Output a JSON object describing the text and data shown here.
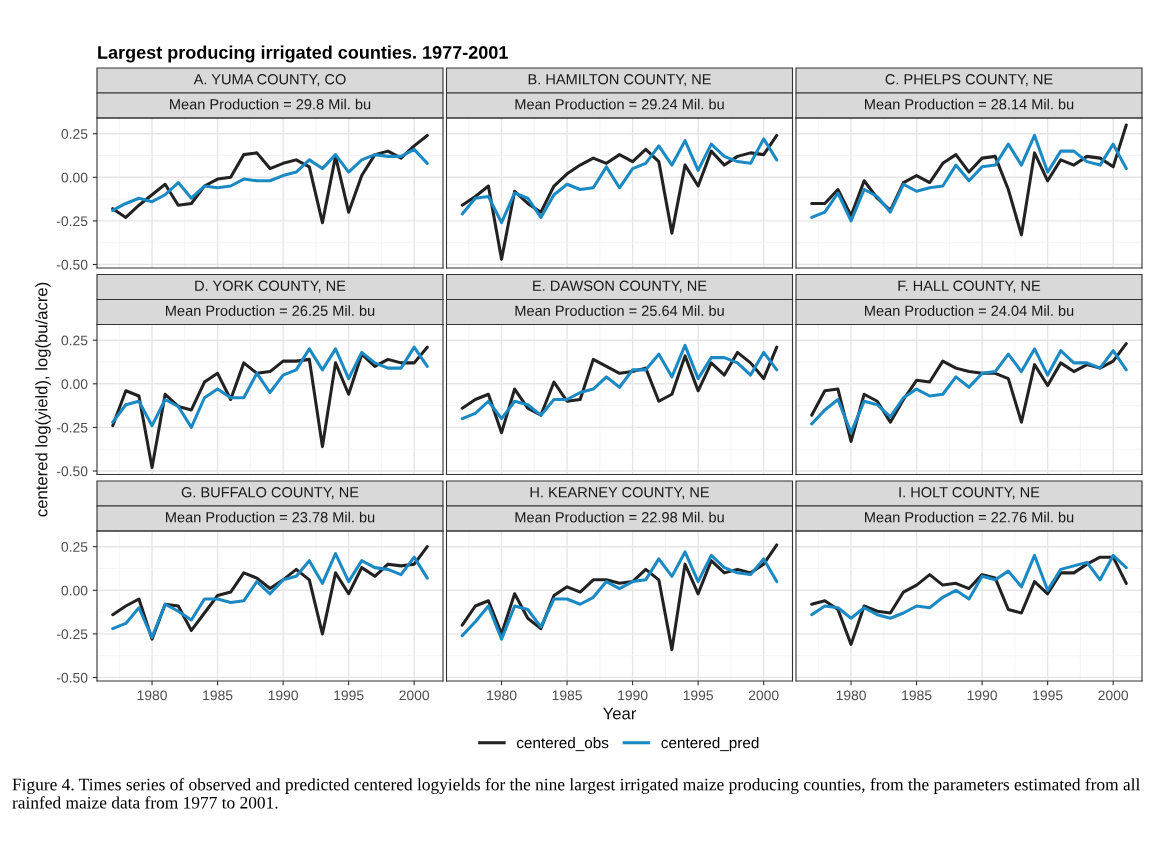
{
  "chart_data": [
    {
      "type": "line",
      "title": "A. YUMA COUNTY, CO",
      "subtitle": "Mean Production = 29.8 Mil. bu",
      "legend": "bottom",
      "annotations": [
        "Largest producing irrigated counties. 1977-2001"
      ],
      "x": [
        1977,
        1978,
        1979,
        1980,
        1981,
        1982,
        1983,
        1984,
        1985,
        1986,
        1987,
        1988,
        1989,
        1990,
        1991,
        1992,
        1993,
        1994,
        1995,
        1996,
        1997,
        1998,
        1999,
        2000,
        2001
      ],
      "xlim": [
        1975.8,
        2002.2
      ],
      "ylim": [
        -0.52,
        0.34
      ],
      "xticks": [
        {
          "value": 1980,
          "label": null
        },
        {
          "value": 1985,
          "label": null
        },
        {
          "value": 1990,
          "label": null
        },
        {
          "value": 1995,
          "label": null
        },
        {
          "value": 2000,
          "label": null
        }
      ],
      "yticks": [
        {
          "value": -0.5,
          "label": "-0.50"
        },
        {
          "value": -0.25,
          "label": "-0.25"
        },
        {
          "value": 0,
          "label": "0.00"
        },
        {
          "value": 0.25,
          "label": "0.25"
        }
      ],
      "grid": true,
      "tick_labels": "y",
      "series": [
        {
          "name": "centered_obs",
          "color": "#222222",
          "values": [
            -0.18,
            -0.23,
            -0.16,
            -0.1,
            -0.04,
            -0.16,
            -0.15,
            -0.05,
            -0.01,
            0.0,
            0.13,
            0.14,
            0.05,
            0.08,
            0.1,
            0.06,
            -0.26,
            0.12,
            -0.2,
            0.01,
            0.13,
            0.15,
            0.11,
            0.18,
            0.24
          ]
        },
        {
          "name": "centered_pred",
          "color": "#1b8ac4",
          "values": [
            -0.19,
            -0.15,
            -0.12,
            -0.14,
            -0.1,
            -0.03,
            -0.12,
            -0.05,
            -0.06,
            -0.05,
            -0.01,
            -0.02,
            -0.02,
            0.01,
            0.03,
            0.1,
            0.05,
            0.13,
            0.03,
            0.1,
            0.13,
            0.12,
            0.12,
            0.16,
            0.08
          ]
        }
      ]
    },
    {
      "type": "line",
      "title": "B. HAMILTON COUNTY, NE",
      "subtitle": "Mean Production = 29.24 Mil. bu",
      "x": [
        1977,
        1978,
        1979,
        1980,
        1981,
        1982,
        1983,
        1984,
        1985,
        1986,
        1987,
        1988,
        1989,
        1990,
        1991,
        1992,
        1993,
        1994,
        1995,
        1996,
        1997,
        1998,
        1999,
        2000,
        2001
      ],
      "xlim": [
        1975.8,
        2002.2
      ],
      "ylim": [
        -0.52,
        0.34
      ],
      "xticks": [
        {
          "value": 1980,
          "label": null
        },
        {
          "value": 1985,
          "label": null
        },
        {
          "value": 1990,
          "label": null
        },
        {
          "value": 1995,
          "label": null
        },
        {
          "value": 2000,
          "label": null
        }
      ],
      "yticks": [
        {
          "value": -0.5,
          "label": null
        },
        {
          "value": -0.25,
          "label": null
        },
        {
          "value": 0,
          "label": null
        },
        {
          "value": 0.25,
          "label": null
        }
      ],
      "grid": true,
      "tick_labels": false,
      "series": [
        {
          "color": "#222222",
          "values": [
            -0.16,
            -0.11,
            -0.05,
            -0.47,
            -0.08,
            -0.15,
            -0.2,
            -0.05,
            0.02,
            0.07,
            0.11,
            0.08,
            0.13,
            0.09,
            0.16,
            0.09,
            -0.32,
            0.07,
            -0.05,
            0.15,
            0.07,
            0.12,
            0.14,
            0.13,
            0.24
          ]
        },
        {
          "color": "#1b8ac4",
          "values": [
            -0.21,
            -0.12,
            -0.11,
            -0.26,
            -0.09,
            -0.12,
            -0.23,
            -0.1,
            -0.04,
            -0.07,
            -0.06,
            0.06,
            -0.06,
            0.05,
            0.08,
            0.18,
            0.07,
            0.21,
            0.04,
            0.19,
            0.12,
            0.09,
            0.08,
            0.22,
            0.1
          ]
        }
      ]
    },
    {
      "type": "line",
      "title": "C. PHELPS COUNTY, NE",
      "subtitle": "Mean Production = 28.14 Mil. bu",
      "x": [
        1977,
        1978,
        1979,
        1980,
        1981,
        1982,
        1983,
        1984,
        1985,
        1986,
        1987,
        1988,
        1989,
        1990,
        1991,
        1992,
        1993,
        1994,
        1995,
        1996,
        1997,
        1998,
        1999,
        2000,
        2001
      ],
      "xlim": [
        1975.8,
        2002.2
      ],
      "ylim": [
        -0.52,
        0.34
      ],
      "xticks": [
        {
          "value": 1980,
          "label": null
        },
        {
          "value": 1985,
          "label": null
        },
        {
          "value": 1990,
          "label": null
        },
        {
          "value": 1995,
          "label": null
        },
        {
          "value": 2000,
          "label": null
        }
      ],
      "yticks": [
        {
          "value": -0.5,
          "label": null
        },
        {
          "value": -0.25,
          "label": null
        },
        {
          "value": 0,
          "label": null
        },
        {
          "value": 0.25,
          "label": null
        }
      ],
      "grid": true,
      "tick_labels": false,
      "series": [
        {
          "color": "#222222",
          "values": [
            -0.15,
            -0.15,
            -0.07,
            -0.22,
            -0.02,
            -0.12,
            -0.19,
            -0.03,
            0.01,
            -0.03,
            0.08,
            0.13,
            0.03,
            0.11,
            0.12,
            -0.07,
            -0.33,
            0.14,
            -0.02,
            0.1,
            0.07,
            0.12,
            0.11,
            0.06,
            0.3
          ]
        },
        {
          "color": "#1b8ac4",
          "values": [
            -0.23,
            -0.2,
            -0.09,
            -0.25,
            -0.07,
            -0.11,
            -0.2,
            -0.04,
            -0.08,
            -0.06,
            -0.05,
            0.07,
            -0.02,
            0.06,
            0.07,
            0.19,
            0.07,
            0.24,
            0.03,
            0.15,
            0.15,
            0.09,
            0.07,
            0.19,
            0.05
          ]
        }
      ]
    },
    {
      "type": "line",
      "title": "D. YORK COUNTY, NE",
      "subtitle": "Mean Production = 26.25 Mil. bu",
      "ylabel": "centered log(yield), log(bu/acre)",
      "x": [
        1977,
        1978,
        1979,
        1980,
        1981,
        1982,
        1983,
        1984,
        1985,
        1986,
        1987,
        1988,
        1989,
        1990,
        1991,
        1992,
        1993,
        1994,
        1995,
        1996,
        1997,
        1998,
        1999,
        2000,
        2001
      ],
      "xlim": [
        1975.8,
        2002.2
      ],
      "ylim": [
        -0.52,
        0.34
      ],
      "xticks": [
        {
          "value": 1980,
          "label": null
        },
        {
          "value": 1985,
          "label": null
        },
        {
          "value": 1990,
          "label": null
        },
        {
          "value": 1995,
          "label": null
        },
        {
          "value": 2000,
          "label": null
        }
      ],
      "yticks": [
        {
          "value": -0.5,
          "label": "-0.50"
        },
        {
          "value": -0.25,
          "label": "-0.25"
        },
        {
          "value": 0,
          "label": "0.00"
        },
        {
          "value": 0.25,
          "label": "0.25"
        }
      ],
      "grid": true,
      "tick_labels": "y",
      "series": [
        {
          "color": "#222222",
          "values": [
            -0.24,
            -0.04,
            -0.07,
            -0.48,
            -0.06,
            -0.13,
            -0.15,
            0.01,
            0.06,
            -0.09,
            0.12,
            0.06,
            0.07,
            0.13,
            0.13,
            0.14,
            -0.36,
            0.12,
            -0.06,
            0.17,
            0.1,
            0.14,
            0.12,
            0.12,
            0.21
          ]
        },
        {
          "color": "#1b8ac4",
          "values": [
            -0.22,
            -0.12,
            -0.1,
            -0.24,
            -0.09,
            -0.13,
            -0.25,
            -0.08,
            -0.03,
            -0.08,
            -0.08,
            0.06,
            -0.05,
            0.05,
            0.08,
            0.2,
            0.08,
            0.2,
            0.03,
            0.18,
            0.12,
            0.09,
            0.09,
            0.21,
            0.1
          ]
        }
      ]
    },
    {
      "type": "line",
      "title": "E. DAWSON COUNTY, NE",
      "subtitle": "Mean Production = 25.64 Mil. bu",
      "x": [
        1977,
        1978,
        1979,
        1980,
        1981,
        1982,
        1983,
        1984,
        1985,
        1986,
        1987,
        1988,
        1989,
        1990,
        1991,
        1992,
        1993,
        1994,
        1995,
        1996,
        1997,
        1998,
        1999,
        2000,
        2001
      ],
      "xlim": [
        1975.8,
        2002.2
      ],
      "ylim": [
        -0.52,
        0.34
      ],
      "xticks": [
        {
          "value": 1980,
          "label": null
        },
        {
          "value": 1985,
          "label": null
        },
        {
          "value": 1990,
          "label": null
        },
        {
          "value": 1995,
          "label": null
        },
        {
          "value": 2000,
          "label": null
        }
      ],
      "yticks": [
        {
          "value": -0.5,
          "label": null
        },
        {
          "value": -0.25,
          "label": null
        },
        {
          "value": 0,
          "label": null
        },
        {
          "value": 0.25,
          "label": null
        }
      ],
      "grid": true,
      "tick_labels": false,
      "series": [
        {
          "color": "#222222",
          "values": [
            -0.14,
            -0.09,
            -0.06,
            -0.28,
            -0.03,
            -0.14,
            -0.18,
            0.01,
            -0.1,
            -0.09,
            0.14,
            0.1,
            0.06,
            0.07,
            0.09,
            -0.1,
            -0.06,
            0.16,
            -0.04,
            0.12,
            0.05,
            0.18,
            0.12,
            0.03,
            0.21
          ]
        },
        {
          "color": "#1b8ac4",
          "values": [
            -0.2,
            -0.17,
            -0.1,
            -0.2,
            -0.1,
            -0.12,
            -0.18,
            -0.09,
            -0.09,
            -0.05,
            -0.03,
            0.04,
            -0.02,
            0.08,
            0.08,
            0.17,
            0.04,
            0.22,
            0.03,
            0.15,
            0.15,
            0.12,
            0.05,
            0.18,
            0.08
          ]
        }
      ]
    },
    {
      "type": "line",
      "title": "F. HALL COUNTY, NE",
      "subtitle": "Mean Production = 24.04 Mil. bu",
      "x": [
        1977,
        1978,
        1979,
        1980,
        1981,
        1982,
        1983,
        1984,
        1985,
        1986,
        1987,
        1988,
        1989,
        1990,
        1991,
        1992,
        1993,
        1994,
        1995,
        1996,
        1997,
        1998,
        1999,
        2000,
        2001
      ],
      "xlim": [
        1975.8,
        2002.2
      ],
      "ylim": [
        -0.52,
        0.34
      ],
      "xticks": [
        {
          "value": 1980,
          "label": null
        },
        {
          "value": 1985,
          "label": null
        },
        {
          "value": 1990,
          "label": null
        },
        {
          "value": 1995,
          "label": null
        },
        {
          "value": 2000,
          "label": null
        }
      ],
      "yticks": [
        {
          "value": -0.5,
          "label": null
        },
        {
          "value": -0.25,
          "label": null
        },
        {
          "value": 0,
          "label": null
        },
        {
          "value": 0.25,
          "label": null
        }
      ],
      "grid": true,
      "tick_labels": false,
      "series": [
        {
          "color": "#222222",
          "values": [
            -0.18,
            -0.04,
            -0.03,
            -0.33,
            -0.06,
            -0.1,
            -0.22,
            -0.09,
            0.02,
            0.01,
            0.13,
            0.09,
            0.07,
            0.06,
            0.06,
            0.03,
            -0.22,
            0.11,
            -0.01,
            0.12,
            0.07,
            0.11,
            0.09,
            0.13,
            0.23
          ]
        },
        {
          "color": "#1b8ac4",
          "values": [
            -0.23,
            -0.15,
            -0.09,
            -0.28,
            -0.1,
            -0.12,
            -0.19,
            -0.08,
            -0.03,
            -0.07,
            -0.06,
            0.04,
            -0.02,
            0.06,
            0.07,
            0.17,
            0.07,
            0.2,
            0.05,
            0.19,
            0.12,
            0.12,
            0.09,
            0.19,
            0.08
          ]
        }
      ]
    },
    {
      "type": "line",
      "title": "G. BUFFALO COUNTY, NE",
      "subtitle": "Mean Production = 23.78 Mil. bu",
      "x": [
        1977,
        1978,
        1979,
        1980,
        1981,
        1982,
        1983,
        1984,
        1985,
        1986,
        1987,
        1988,
        1989,
        1990,
        1991,
        1992,
        1993,
        1994,
        1995,
        1996,
        1997,
        1998,
        1999,
        2000,
        2001
      ],
      "xlim": [
        1975.8,
        2002.2
      ],
      "ylim": [
        -0.52,
        0.34
      ],
      "xticks": [
        1980,
        1985,
        1990,
        1995,
        2000
      ],
      "yticks": [
        {
          "value": -0.5,
          "label": "-0.50"
        },
        {
          "value": -0.25,
          "label": "-0.25"
        },
        {
          "value": 0,
          "label": "0.00"
        },
        {
          "value": 0.25,
          "label": "0.25"
        }
      ],
      "grid": true,
      "series": [
        {
          "color": "#222222",
          "values": [
            -0.14,
            -0.09,
            -0.05,
            -0.28,
            -0.08,
            -0.09,
            -0.23,
            -0.13,
            -0.03,
            -0.01,
            0.1,
            0.07,
            0.01,
            0.06,
            0.12,
            0.06,
            -0.25,
            0.1,
            -0.02,
            0.13,
            0.08,
            0.15,
            0.14,
            0.15,
            0.25
          ]
        },
        {
          "color": "#1b8ac4",
          "values": [
            -0.22,
            -0.19,
            -0.1,
            -0.27,
            -0.08,
            -0.12,
            -0.17,
            -0.05,
            -0.05,
            -0.07,
            -0.06,
            0.05,
            -0.02,
            0.06,
            0.08,
            0.17,
            0.04,
            0.21,
            0.05,
            0.17,
            0.13,
            0.12,
            0.09,
            0.19,
            0.07
          ]
        }
      ]
    },
    {
      "type": "line",
      "title": "H. KEARNEY COUNTY, NE",
      "subtitle": "Mean Production = 22.98 Mil. bu",
      "xlabel": "Year",
      "annotations": [
        "Figure 4. Times series of observed and predicted centered logyields for the nine largest irrigated maize producing counties, from the parameters estimated from all rainfed maize data from 1977 to 2001."
      ],
      "x": [
        1977,
        1978,
        1979,
        1980,
        1981,
        1982,
        1983,
        1984,
        1985,
        1986,
        1987,
        1988,
        1989,
        1990,
        1991,
        1992,
        1993,
        1994,
        1995,
        1996,
        1997,
        1998,
        1999,
        2000,
        2001
      ],
      "xlim": [
        1975.8,
        2002.2
      ],
      "ylim": [
        -0.52,
        0.34
      ],
      "xticks": [
        1980,
        1985,
        1990,
        1995,
        2000
      ],
      "yticks": [
        {
          "value": -0.5,
          "label": null
        },
        {
          "value": -0.25,
          "label": null
        },
        {
          "value": 0,
          "label": null
        },
        {
          "value": 0.25,
          "label": null
        }
      ],
      "grid": true,
      "tick_labels": "x",
      "series": [
        {
          "color": "#222222",
          "values": [
            -0.2,
            -0.09,
            -0.06,
            -0.25,
            -0.02,
            -0.16,
            -0.22,
            -0.03,
            0.02,
            -0.01,
            0.06,
            0.06,
            0.04,
            0.05,
            0.12,
            0.06,
            -0.34,
            0.15,
            -0.02,
            0.17,
            0.1,
            0.12,
            0.1,
            0.15,
            0.26
          ]
        },
        {
          "color": "#1b8ac4",
          "values": [
            -0.26,
            -0.18,
            -0.09,
            -0.28,
            -0.09,
            -0.11,
            -0.21,
            -0.05,
            -0.05,
            -0.08,
            -0.04,
            0.05,
            0.01,
            0.05,
            0.06,
            0.18,
            0.08,
            0.22,
            0.05,
            0.2,
            0.13,
            0.1,
            0.09,
            0.18,
            0.05
          ]
        }
      ]
    },
    {
      "type": "line",
      "title": "I. HOLT COUNTY, NE",
      "subtitle": "Mean Production = 22.76 Mil. bu",
      "x": [
        1977,
        1978,
        1979,
        1980,
        1981,
        1982,
        1983,
        1984,
        1985,
        1986,
        1987,
        1988,
        1989,
        1990,
        1991,
        1992,
        1993,
        1994,
        1995,
        1996,
        1997,
        1998,
        1999,
        2000,
        2001
      ],
      "xlim": [
        1975.8,
        2002.2
      ],
      "ylim": [
        -0.52,
        0.34
      ],
      "xticks": [
        1980,
        1985,
        1990,
        1995,
        2000
      ],
      "yticks": [
        {
          "value": -0.5,
          "label": null
        },
        {
          "value": -0.25,
          "label": null
        },
        {
          "value": 0,
          "label": null
        },
        {
          "value": 0.25,
          "label": null
        }
      ],
      "grid": true,
      "tick_labels": "x",
      "series": [
        {
          "color": "#222222",
          "values": [
            -0.08,
            -0.06,
            -0.11,
            -0.31,
            -0.09,
            -0.12,
            -0.13,
            -0.01,
            0.03,
            0.09,
            0.03,
            0.04,
            0.01,
            0.09,
            0.07,
            -0.11,
            -0.13,
            0.05,
            -0.02,
            0.1,
            0.1,
            0.15,
            0.19,
            0.19,
            0.04
          ]
        },
        {
          "color": "#1b8ac4",
          "values": [
            -0.14,
            -0.09,
            -0.1,
            -0.16,
            -0.1,
            -0.14,
            -0.16,
            -0.13,
            -0.09,
            -0.1,
            -0.04,
            0.0,
            -0.05,
            0.08,
            0.06,
            0.11,
            0.02,
            0.2,
            0.0,
            0.12,
            0.14,
            0.16,
            0.06,
            0.2,
            0.13
          ]
        }
      ]
    }
  ]
}
